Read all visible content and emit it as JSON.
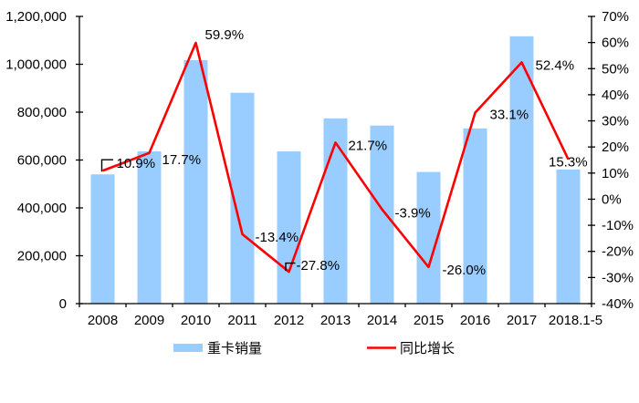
{
  "chart_data": {
    "type": "bar+line",
    "title": "",
    "background": "#FFFFFF",
    "grid": false,
    "categories": [
      "2008",
      "2009",
      "2010",
      "2011",
      "2012",
      "2013",
      "2014",
      "2015",
      "2016",
      "2017",
      "2018.1-5"
    ],
    "series": [
      {
        "name": "重卡销量",
        "type": "bar",
        "axis": "left",
        "color": "#99CCFF",
        "values": [
          540000,
          636000,
          1017000,
          881000,
          636000,
          774000,
          744000,
          550000,
          732000,
          1117000,
          560000
        ]
      },
      {
        "name": "同比增长",
        "type": "line",
        "axis": "right",
        "color": "#FF0000",
        "values": [
          10.9,
          17.7,
          59.9,
          -13.4,
          -27.8,
          21.7,
          -3.9,
          -26.0,
          33.1,
          52.4,
          15.3
        ],
        "point_labels": [
          "10.9%",
          "17.7%",
          "59.9%",
          "-13.4%",
          "-27.8%",
          "21.7%",
          "-3.9%",
          "-26.0%",
          "33.1%",
          "52.4%",
          "15.3%"
        ]
      }
    ],
    "axes": {
      "left": {
        "min": 0,
        "max": 1200000,
        "step": 200000,
        "tick_labels": [
          "0",
          "200,000",
          "400,000",
          "600,000",
          "800,000",
          "1,000,000",
          "1,200,000"
        ]
      },
      "right": {
        "min": -40,
        "max": 70,
        "step": 10,
        "tick_labels": [
          "-40%",
          "-30%",
          "-20%",
          "-10%",
          "0%",
          "10%",
          "20%",
          "30%",
          "40%",
          "50%",
          "60%",
          "70%"
        ]
      }
    },
    "legend": {
      "position": "bottom",
      "items": [
        {
          "label": "重卡销量",
          "swatch": "bar",
          "color": "#99CCFF"
        },
        {
          "label": "同比增长",
          "swatch": "line",
          "color": "#FF0000"
        }
      ]
    },
    "axis_color": "#000000",
    "label_color": "#000000"
  }
}
